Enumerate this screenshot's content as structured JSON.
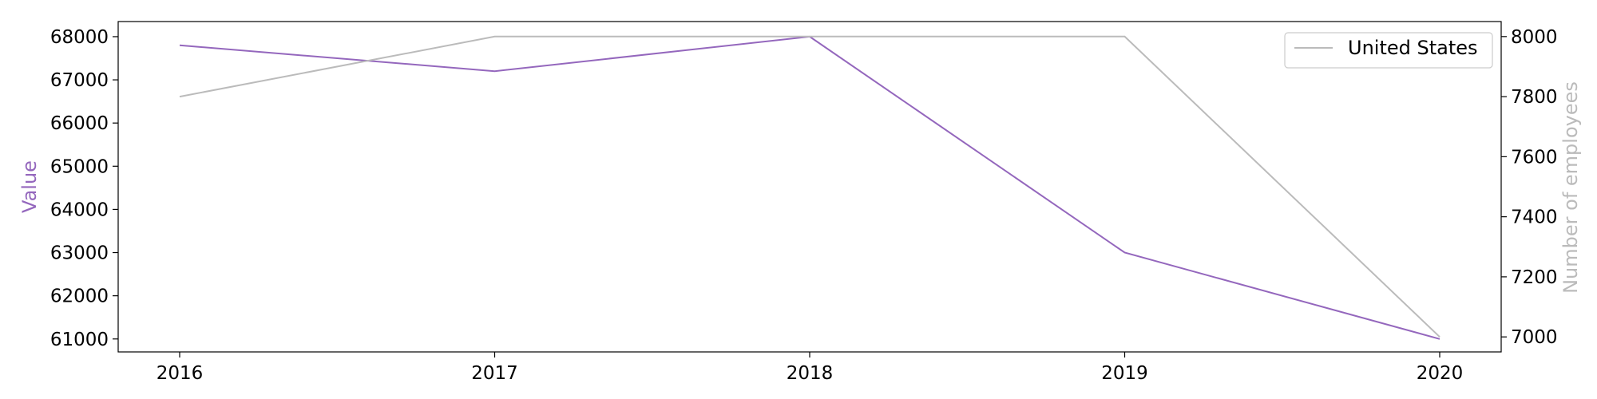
{
  "chart_data": {
    "type": "line",
    "title": "",
    "x": [
      "2016",
      "2017",
      "2018",
      "2019",
      "2020"
    ],
    "xlabel": "",
    "grid": false,
    "y_left": {
      "label": "Value",
      "ylim": [
        60700,
        68350
      ],
      "ticks": [
        61000,
        62000,
        63000,
        64000,
        65000,
        66000,
        67000,
        68000
      ],
      "color": "#9467bd"
    },
    "y_right": {
      "label": "Number of employees",
      "ylim": [
        6950,
        8050
      ],
      "ticks": [
        7000,
        7200,
        7400,
        7600,
        7800,
        8000
      ],
      "color": "#bbbbbb"
    },
    "series": [
      {
        "axis": "left",
        "color": "#9467bd",
        "values": [
          67800,
          67200,
          68000,
          63000,
          61000
        ]
      },
      {
        "name": "United States",
        "axis": "right",
        "color": "#bbbbbb",
        "values": [
          7800,
          8000,
          8000,
          8000,
          7000
        ]
      }
    ],
    "legend": {
      "placement": "top-right",
      "entries": [
        "United States"
      ]
    }
  }
}
